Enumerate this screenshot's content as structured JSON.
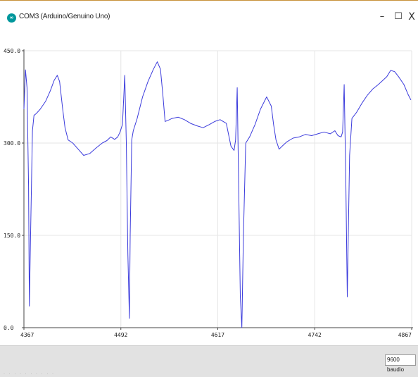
{
  "window": {
    "title": "COM3 (Arduino/Genuino Uno)",
    "minimize_glyph": "–",
    "maximize_glyph": "☐",
    "close_glyph": "X",
    "icon": "arduino-icon"
  },
  "colors": {
    "line": "#3b3bdc",
    "grid": "#e6e6e6",
    "axis": "#444444",
    "accent": "#c8913a"
  },
  "chart_data": {
    "type": "line",
    "title": "",
    "xlabel": "",
    "ylabel": "",
    "xlim": [
      4367,
      4867
    ],
    "ylim": [
      0,
      450
    ],
    "x_ticks": [
      4367,
      4492,
      4617,
      4742,
      4867
    ],
    "x_tick_labels": [
      "4367",
      "4492",
      "4617",
      "4742",
      "4867"
    ],
    "y_ticks": [
      0,
      150,
      300,
      450
    ],
    "y_tick_labels": [
      "0.0",
      "150.0",
      "300.0",
      "450.0"
    ],
    "grid": true,
    "series": [
      {
        "name": "",
        "x": [
          4367,
          4369,
          4371,
          4373,
          4374,
          4376,
          4378,
          4380,
          4383,
          4388,
          4395,
          4401,
          4406,
          4410,
          4413,
          4417,
          4420,
          4424,
          4430,
          4437,
          4444,
          4452,
          4460,
          4468,
          4474,
          4479,
          4484,
          4488,
          4491,
          4494,
          4497,
          4499,
          4501,
          4503,
          4504,
          4506,
          4508,
          4513,
          4520,
          4527,
          4534,
          4539,
          4543,
          4546,
          4549,
          4553,
          4558,
          4566,
          4574,
          4582,
          4590,
          4598,
          4606,
          4613,
          4620,
          4628,
          4634,
          4638,
          4640,
          4642,
          4644,
          4646,
          4648,
          4650,
          4653,
          4658,
          4665,
          4672,
          4680,
          4686,
          4689,
          4692,
          4696,
          4700,
          4706,
          4714,
          4722,
          4730,
          4738,
          4746,
          4754,
          4762,
          4768,
          4772,
          4776,
          4778,
          4780,
          4782,
          4784,
          4787,
          4790,
          4796,
          4803,
          4810,
          4817,
          4824,
          4830,
          4835,
          4840,
          4845,
          4850,
          4857,
          4862,
          4866
        ],
        "values": [
          355,
          419,
          390,
          230,
          35,
          180,
          320,
          345,
          348,
          355,
          368,
          385,
          402,
          410,
          400,
          355,
          325,
          305,
          300,
          290,
          280,
          283,
          292,
          300,
          304,
          310,
          306,
          310,
          318,
          330,
          410,
          300,
          120,
          15,
          150,
          305,
          320,
          340,
          375,
          400,
          420,
          432,
          420,
          380,
          335,
          337,
          340,
          342,
          338,
          332,
          328,
          325,
          330,
          335,
          338,
          332,
          295,
          288,
          305,
          390,
          220,
          50,
          0,
          150,
          300,
          310,
          330,
          355,
          375,
          360,
          330,
          305,
          290,
          295,
          302,
          308,
          310,
          314,
          312,
          315,
          318,
          315,
          320,
          312,
          310,
          318,
          395,
          250,
          50,
          280,
          340,
          350,
          365,
          378,
          388,
          395,
          402,
          408,
          418,
          416,
          408,
          395,
          380,
          370
        ]
      }
    ]
  },
  "status": {
    "baud_label": "9600 baudio",
    "baud_arrow": "∨",
    "faint_text": "· · · · · · · · · ·"
  }
}
